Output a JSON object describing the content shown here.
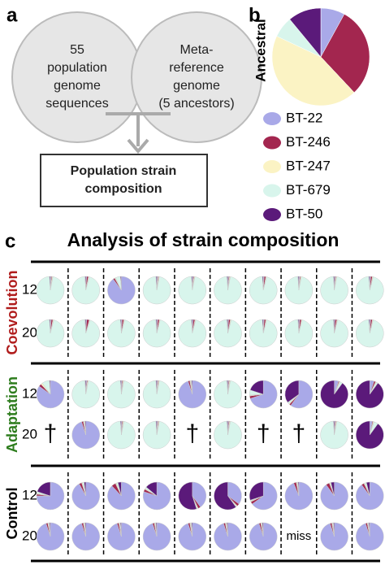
{
  "panel_labels": [
    "a",
    "b",
    "c"
  ],
  "diagram": {
    "left_circle": [
      "55",
      "population",
      "genome",
      "sequences"
    ],
    "right_circle": [
      "Meta-",
      "reference",
      "genome",
      "(5 ancestors)"
    ],
    "box": [
      "Population strain",
      "composition"
    ]
  },
  "chart_data": [
    {
      "type": "pie",
      "label": "Ancestral",
      "categories": [
        "BT-22",
        "BT-246",
        "BT-247",
        "BT-679",
        "BT-50"
      ],
      "colors": [
        "#a9a9e8",
        "#a3264f",
        "#fbf3c4",
        "#d8f5ec",
        "#5b1a7a"
      ],
      "values": [
        8,
        30,
        44,
        7,
        11
      ]
    },
    {
      "type": "pies",
      "title": "Analysis of strain composition",
      "groups": [
        {
          "name": "Coevolution",
          "color": "#b01c1c",
          "rows": [
            {
              "label": "12",
              "cells": [
                [
                  1,
                  1,
                  1,
                  96,
                  1
                ],
                [
                  1,
                  2,
                  1,
                  95,
                  1
                ],
                [
                  90,
                  2,
                  1,
                  6,
                  1
                ],
                [
                  1,
                  1,
                  1,
                  96,
                  1
                ],
                [
                  1,
                  1,
                  1,
                  96,
                  1
                ],
                [
                  1,
                  1,
                  1,
                  96,
                  1
                ],
                [
                  1,
                  2,
                  1,
                  95,
                  1
                ],
                [
                  1,
                  1,
                  1,
                  96,
                  1
                ],
                [
                  1,
                  1,
                  1,
                  96,
                  1
                ],
                [
                  1,
                  2,
                  1,
                  95,
                  1
                ]
              ]
            },
            {
              "label": "20",
              "cells": [
                [
                  1,
                  2,
                  1,
                  95,
                  1
                ],
                [
                  1,
                  3,
                  1,
                  94,
                  1
                ],
                [
                  1,
                  2,
                  1,
                  95,
                  1
                ],
                [
                  1,
                  2,
                  1,
                  95,
                  1
                ],
                [
                  1,
                  2,
                  1,
                  95,
                  1
                ],
                [
                  1,
                  2,
                  1,
                  95,
                  1
                ],
                [
                  1,
                  2,
                  1,
                  95,
                  1
                ],
                [
                  1,
                  2,
                  1,
                  95,
                  1
                ],
                [
                  1,
                  2,
                  1,
                  95,
                  1
                ],
                [
                  1,
                  2,
                  1,
                  95,
                  1
                ]
              ]
            }
          ]
        },
        {
          "name": "Adaptation",
          "color": "#2e7d1e",
          "rows": [
            {
              "label": "12",
              "cells": [
                [
                  85,
                  3,
                  2,
                  9,
                  1
                ],
                [
                  1,
                  1,
                  1,
                  96,
                  1
                ],
                [
                  1,
                  1,
                  1,
                  96,
                  1
                ],
                [
                  1,
                  1,
                  1,
                  96,
                  1
                ],
                [
                  95,
                  2,
                  1,
                  1,
                  1
                ],
                [
                  1,
                  1,
                  1,
                  96,
                  1
                ],
                [
                  70,
                  3,
                  1,
                  6,
                  20
                ],
                [
                  60,
                  2,
                  1,
                  2,
                  35
                ],
                [
                  5,
                  1,
                  1,
                  3,
                  90
                ],
                [
                  5,
                  2,
                  1,
                  2,
                  90
                ]
              ]
            },
            {
              "label": "20",
              "cells": [
                "†",
                [
                  95,
                  2,
                  1,
                  1,
                  1
                ],
                [
                  1,
                  1,
                  1,
                  96,
                  1
                ],
                [
                  1,
                  1,
                  1,
                  96,
                  1
                ],
                "†",
                [
                  1,
                  1,
                  1,
                  96,
                  1
                ],
                "†",
                "†",
                [
                  1,
                  1,
                  1,
                  96,
                  1
                ],
                [
                  3,
                  1,
                  1,
                  5,
                  90
                ]
              ]
            }
          ]
        },
        {
          "name": "Control",
          "color": "#000000",
          "rows": [
            {
              "label": "12",
              "cells": [
                [
                  75,
                  2,
                  1,
                  2,
                  20
                ],
                [
                  92,
                  3,
                  1,
                  2,
                  2
                ],
                [
                  88,
                  5,
                  1,
                  2,
                  4
                ],
                [
                  80,
                  3,
                  1,
                  2,
                  14
                ],
                [
                  40,
                  3,
                  1,
                  1,
                  55
                ],
                [
                  35,
                  3,
                  1,
                  1,
                  60
                ],
                [
                  65,
                  3,
                  1,
                  1,
                  30
                ],
                [
                  94,
                  3,
                  1,
                  1,
                  1
                ],
                [
                  90,
                  4,
                  1,
                  1,
                  4
                ],
                [
                  90,
                  3,
                  1,
                  2,
                  4
                ]
              ]
            },
            {
              "label": "20",
              "cells": [
                [
                  95,
                  2,
                  1,
                  1,
                  1
                ],
                [
                  95,
                  2,
                  1,
                  1,
                  1
                ],
                [
                  95,
                  2,
                  1,
                  1,
                  1
                ],
                [
                  95,
                  2,
                  1,
                  1,
                  1
                ],
                [
                  95,
                  2,
                  1,
                  1,
                  1
                ],
                [
                  95,
                  2,
                  1,
                  1,
                  1
                ],
                [
                  95,
                  2,
                  1,
                  1,
                  1
                ],
                "miss",
                [
                  95,
                  2,
                  1,
                  1,
                  1
                ],
                [
                  95,
                  2,
                  1,
                  1,
                  1
                ]
              ]
            }
          ]
        }
      ]
    }
  ]
}
